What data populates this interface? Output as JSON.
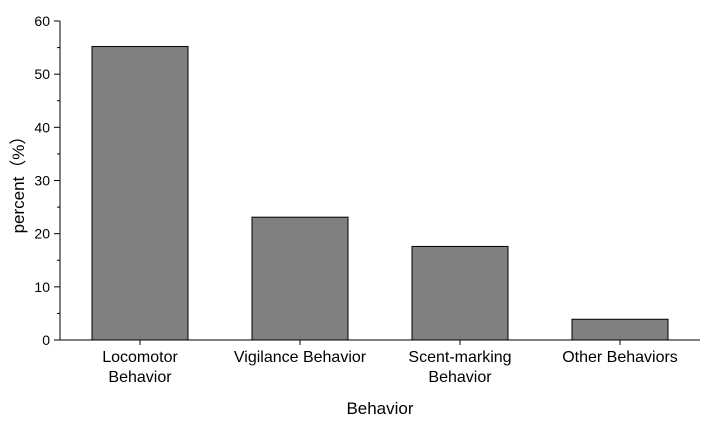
{
  "chart_data": {
    "type": "bar",
    "categories": [
      [
        "Locomotor",
        "Behavior"
      ],
      [
        "Vigilance Behavior"
      ],
      [
        "Scent-marking",
        "Behavior"
      ],
      [
        "Other Behaviors"
      ]
    ],
    "values": [
      55.2,
      23.1,
      17.6,
      3.9
    ],
    "xlabel": "Behavior",
    "ylabel": "percent（%）",
    "ylim": [
      0,
      60
    ],
    "yticks": [
      "0",
      "10",
      "20",
      "30",
      "40",
      "50",
      "60"
    ],
    "grid": false,
    "colors": {
      "bar_fill": "#808080",
      "bar_stroke": "#000000"
    }
  }
}
